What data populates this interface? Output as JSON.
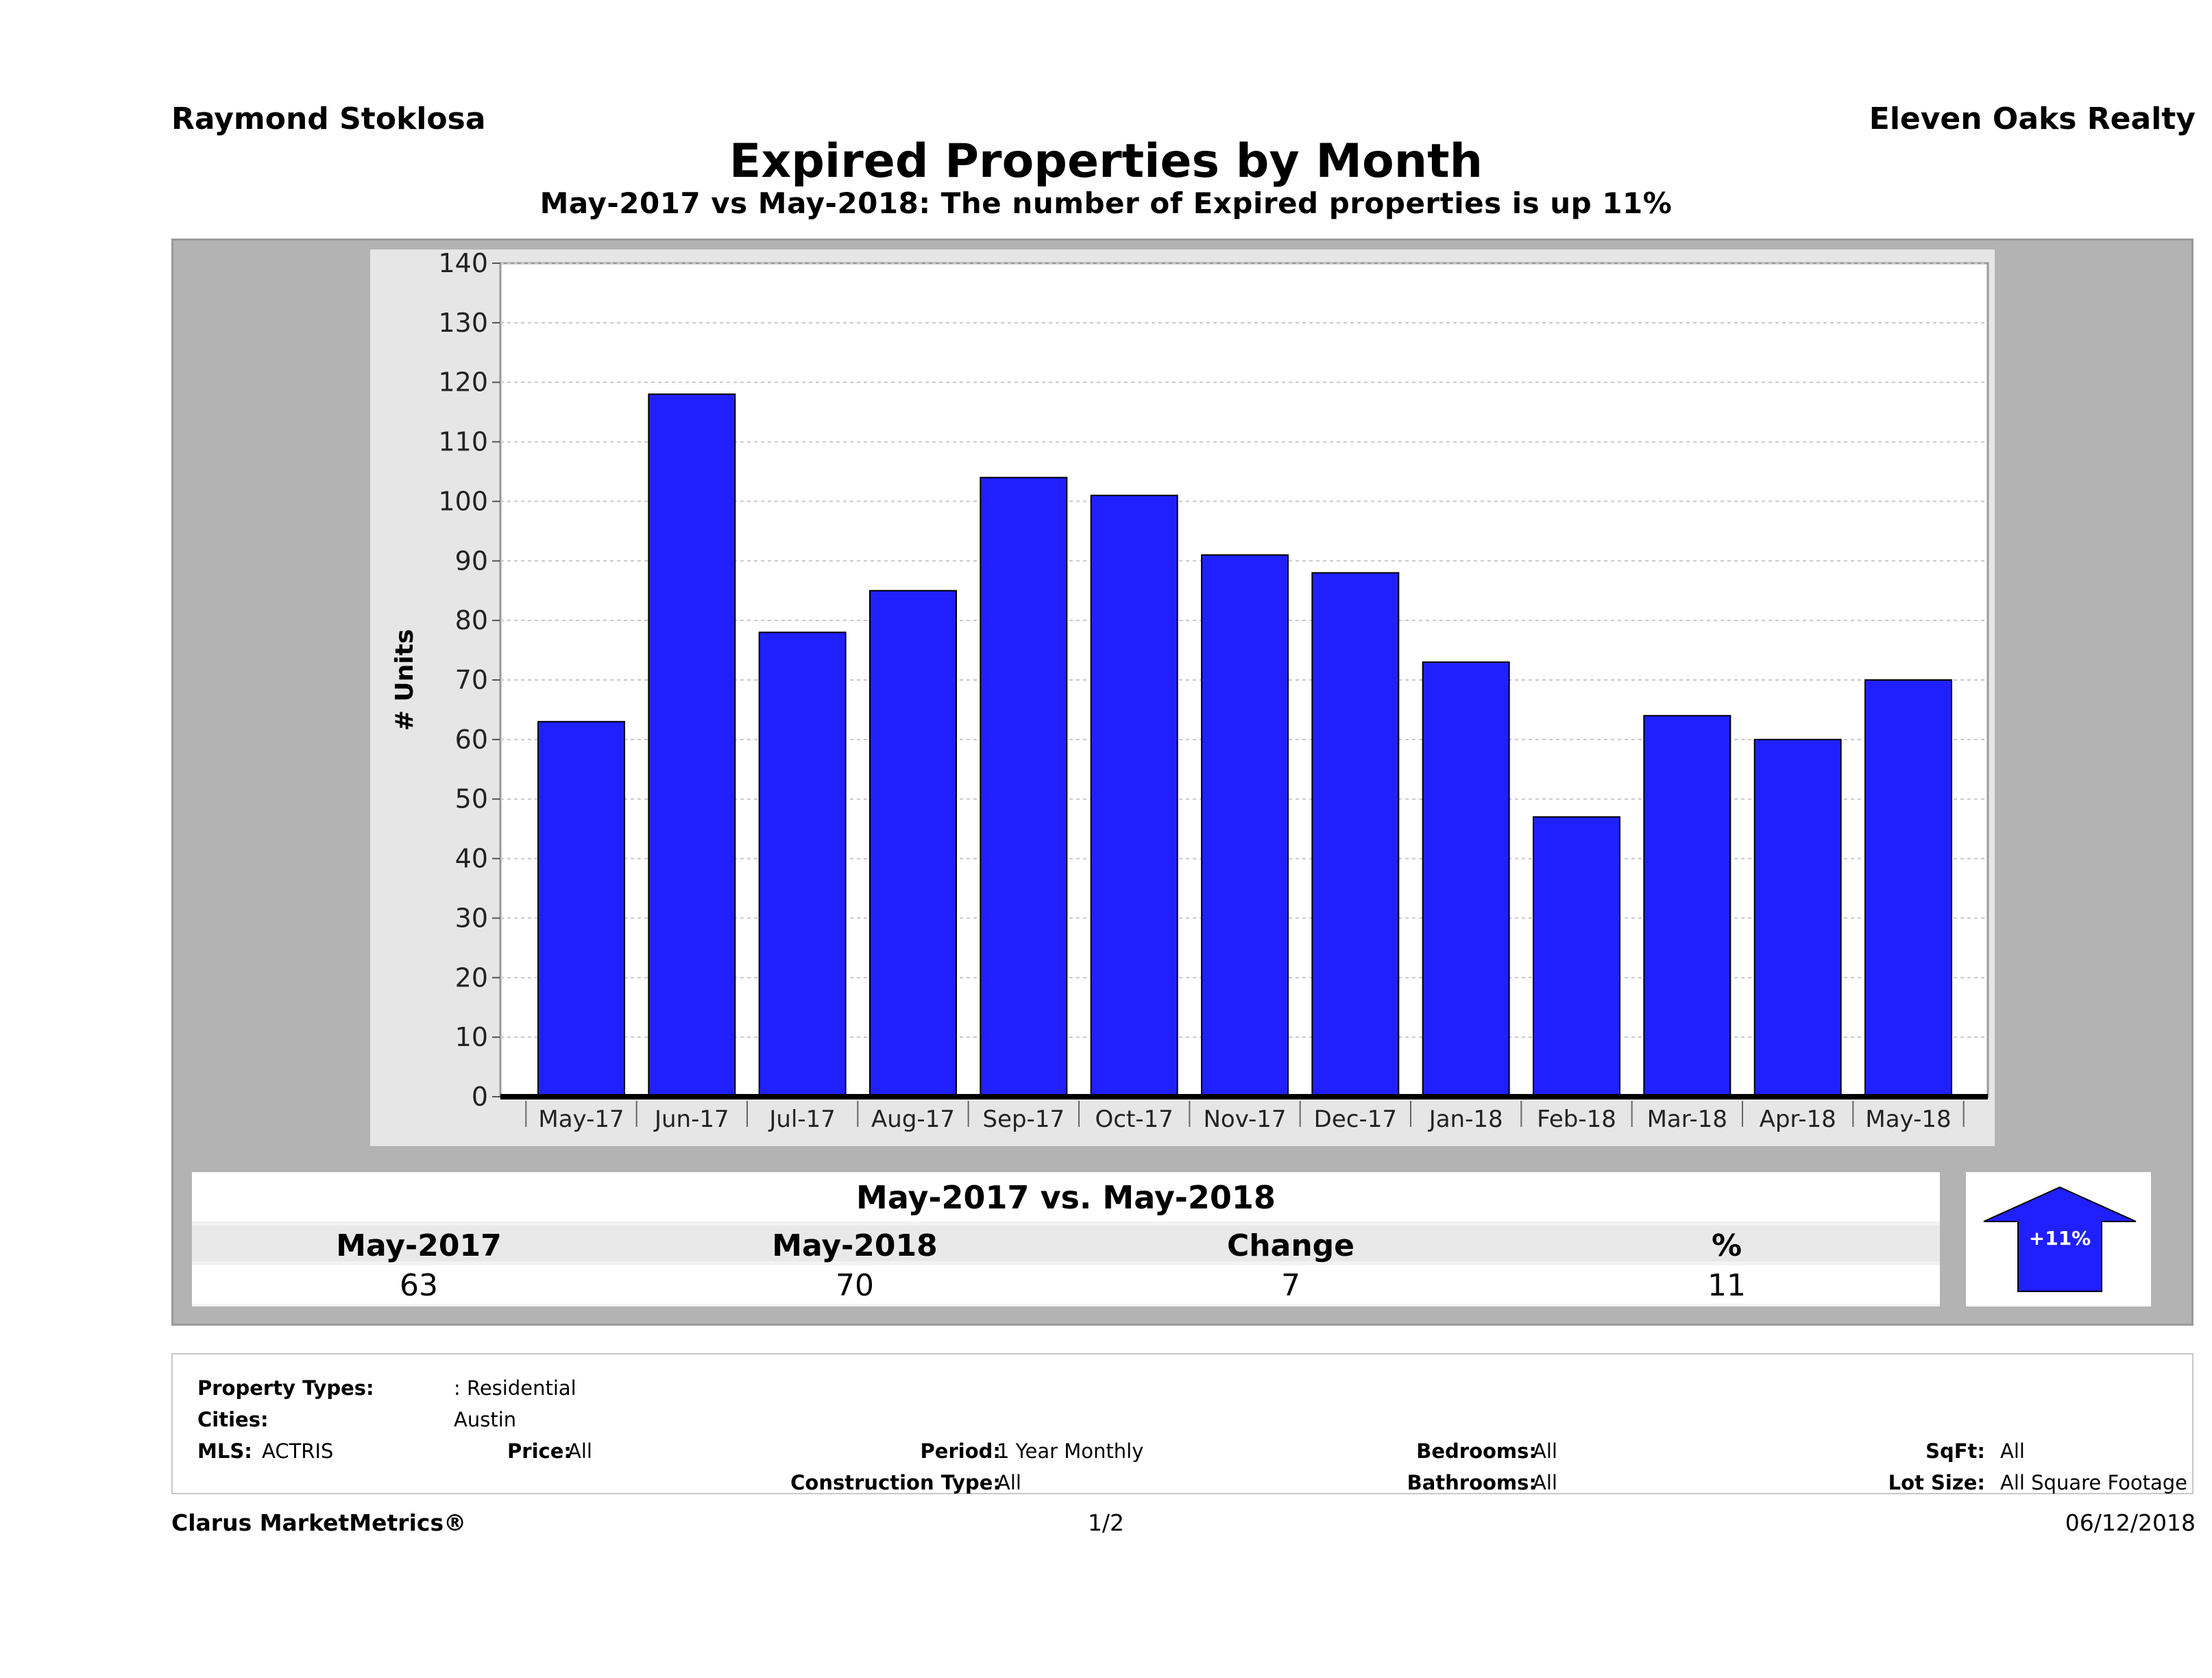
{
  "header": {
    "agent_name": "Raymond Stoklosa",
    "brokerage": "Eleven Oaks Realty",
    "title": "Expired Properties by Month",
    "subtitle": "May-2017 vs May-2018: The number of Expired  properties is up 11%"
  },
  "chart_data": {
    "type": "bar",
    "categories": [
      "May-17",
      "Jun-17",
      "Jul-17",
      "Aug-17",
      "Sep-17",
      "Oct-17",
      "Nov-17",
      "Dec-17",
      "Jan-18",
      "Feb-18",
      "Mar-18",
      "Apr-18",
      "May-18"
    ],
    "values": [
      63,
      118,
      78,
      85,
      104,
      101,
      91,
      88,
      73,
      47,
      64,
      60,
      70
    ],
    "ylabel": "# Units",
    "ylim": [
      0,
      140
    ],
    "yticks": [
      0,
      10,
      20,
      30,
      40,
      50,
      60,
      70,
      80,
      90,
      100,
      110,
      120,
      130,
      140
    ],
    "grid": true,
    "colors": {
      "bar": "#2020ff",
      "bar_border": "#000000",
      "plot_bg": "#ffffff",
      "panel_bg": "#e6e6e6"
    }
  },
  "summary": {
    "title": "May-2017 vs. May-2018",
    "headers": [
      "May-2017",
      "May-2018",
      "Change",
      "%"
    ],
    "values": [
      "63",
      "70",
      "7",
      "11"
    ],
    "badge": {
      "label": "+11%",
      "direction": "up",
      "color": "#2020ff"
    }
  },
  "filters": {
    "property_types_label": "Property Types:",
    "property_types_value": ": Residential",
    "cities_label": "Cities:",
    "cities_value": "Austin",
    "mls_label": "MLS:",
    "mls_value": "ACTRIS",
    "price_label": "Price:",
    "price_value": "All",
    "period_label": "Period:",
    "period_value": "1 Year Monthly",
    "construction_label": "Construction Type:",
    "construction_value": "All",
    "bedrooms_label": "Bedrooms:",
    "bedrooms_value": "All",
    "bathrooms_label": "Bathrooms:",
    "bathrooms_value": "All",
    "sqft_label": "SqFt:",
    "sqft_value": "All",
    "lot_size_label": "Lot Size:",
    "lot_size_value": "All Square Footage"
  },
  "footer": {
    "brand": "Clarus MarketMetrics®",
    "page": "1/2",
    "date": "06/12/2018"
  }
}
